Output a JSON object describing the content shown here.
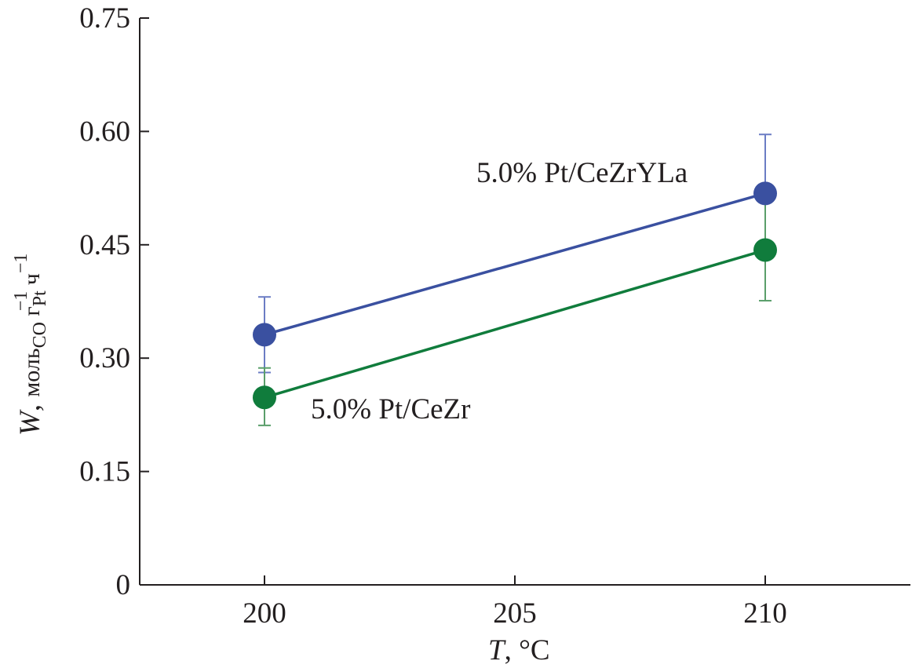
{
  "chart_data": {
    "type": "line",
    "xlabel": {
      "var": "T",
      "rest": ", °C"
    },
    "ylabel": {
      "var": "W",
      "sep": ", ",
      "p1": "моль",
      "s1": "CO",
      "p2": " г",
      "s2": "Pt",
      "sup2": "−1",
      "p3": " ч",
      "sup3": "−1"
    },
    "xlim": [
      197.5,
      212.9
    ],
    "ylim": [
      0,
      0.75
    ],
    "xticks": [
      200,
      205,
      210
    ],
    "xtick_labels": [
      "200",
      "205",
      "210"
    ],
    "yticks": [
      0,
      0.15,
      0.3,
      0.45,
      0.6,
      0.75
    ],
    "ytick_labels": [
      "0",
      "0.15",
      "0.30",
      "0.45",
      "0.60",
      "0.75"
    ],
    "grid": false,
    "series": [
      {
        "name": "5.0% Pt/CeZrYLa",
        "color": "#3a50a0",
        "errcolor": "#6b7cc4",
        "x": [
          200,
          210
        ],
        "y": [
          0.331,
          0.518
        ],
        "err_low": [
          0.281,
          0.44
        ],
        "err_high": [
          0.381,
          0.596
        ]
      },
      {
        "name": "5.0% Pt/CeZr",
        "color": "#107c3c",
        "errcolor": "#5a9e6a",
        "x": [
          200,
          210
        ],
        "y": [
          0.248,
          0.443
        ],
        "err_low": [
          0.211,
          0.376
        ],
        "err_high": [
          0.287,
          0.509
        ]
      }
    ]
  }
}
